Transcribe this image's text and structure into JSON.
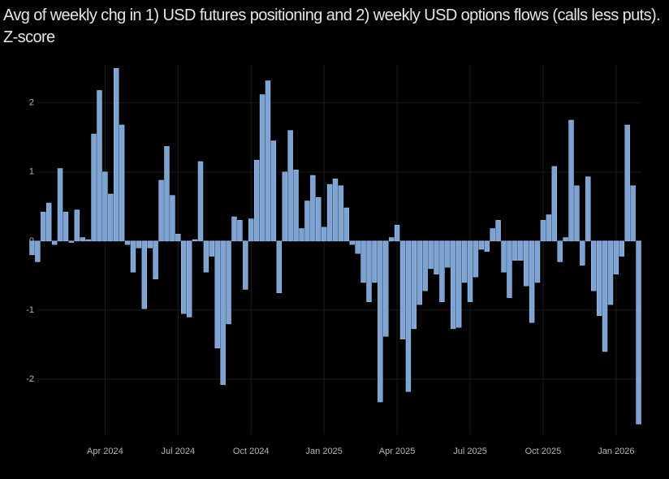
{
  "chart_data": {
    "type": "bar",
    "title": "Avg of weekly chg in 1) USD futures positioning and 2) weekly USD options flows (calls less puts). Z-score",
    "categories": [
      null,
      null,
      null,
      null,
      null,
      null,
      null,
      null,
      null,
      null,
      null,
      null,
      null,
      "Apr 2024",
      null,
      null,
      null,
      null,
      null,
      null,
      null,
      null,
      null,
      null,
      null,
      null,
      "Jul 2024",
      null,
      null,
      null,
      null,
      null,
      null,
      null,
      null,
      null,
      null,
      null,
      null,
      "Oct 2024",
      null,
      null,
      null,
      null,
      null,
      null,
      null,
      null,
      null,
      null,
      null,
      null,
      "Jan 2025",
      null,
      null,
      null,
      null,
      null,
      null,
      null,
      null,
      null,
      null,
      null,
      null,
      "Apr 2025",
      null,
      null,
      null,
      null,
      null,
      null,
      null,
      null,
      null,
      null,
      null,
      null,
      "Jul 2025",
      null,
      null,
      null,
      null,
      null,
      null,
      null,
      null,
      null,
      null,
      null,
      null,
      "Oct 2025",
      null,
      null,
      null,
      null,
      null,
      null,
      null,
      null,
      null,
      null,
      null,
      null,
      "Jan 2026",
      null,
      null,
      null,
      null
    ],
    "values": [
      -0.2,
      -0.3,
      0.42,
      0.55,
      -0.05,
      1.05,
      0.42,
      -0.02,
      0.45,
      0.05,
      0.02,
      1.55,
      2.18,
      1.0,
      0.68,
      2.5,
      1.68,
      -0.05,
      -0.45,
      -0.1,
      -0.98,
      -0.1,
      -0.55,
      0.88,
      1.37,
      0.66,
      0.1,
      -1.05,
      -1.1,
      0.02,
      1.15,
      -0.45,
      -0.22,
      -1.55,
      -2.08,
      -1.2,
      0.35,
      0.3,
      -0.7,
      0.32,
      1.17,
      2.12,
      2.32,
      1.45,
      -0.75,
      1.0,
      1.6,
      1.03,
      0.18,
      0.58,
      0.95,
      0.63,
      0.2,
      0.82,
      0.9,
      0.8,
      0.48,
      -0.05,
      -0.18,
      -0.6,
      -0.88,
      -0.6,
      -2.33,
      -1.38,
      0.05,
      0.23,
      -1.42,
      -2.18,
      -1.27,
      -0.92,
      -0.72,
      -0.4,
      -0.48,
      -0.88,
      -0.38,
      -1.27,
      -1.25,
      -0.6,
      -0.88,
      -0.52,
      -0.12,
      -0.15,
      0.18,
      0.3,
      -0.45,
      -0.82,
      -0.28,
      -0.28,
      -0.65,
      -1.18,
      -0.6,
      0.3,
      0.38,
      1.08,
      -0.3,
      0.05,
      1.75,
      0.8,
      -0.35,
      0.93,
      -0.72,
      -1.08,
      -1.6,
      -0.92,
      -0.48,
      -0.22,
      1.68,
      0.8,
      -2.65
    ],
    "color": "#7aa3d6",
    "ylim": [
      -2.8,
      2.55
    ],
    "yticks": [
      -2,
      -1,
      0,
      1,
      2
    ],
    "grid": true
  }
}
